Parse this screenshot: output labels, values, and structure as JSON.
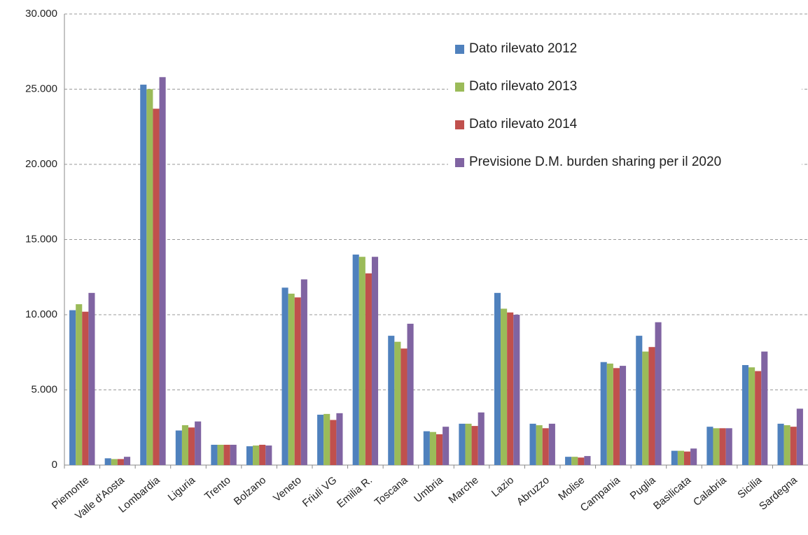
{
  "chart_data": {
    "type": "bar",
    "categories": [
      "Piemonte",
      "Valle d'Aosta",
      "Lombardia",
      "Liguria",
      "Trento",
      "Bolzano",
      "Veneto",
      "Friuli VG",
      "Emilia R.",
      "Toscana",
      "Umbria",
      "Marche",
      "Lazio",
      "Abruzzo",
      "Molise",
      "Campania",
      "Puglia",
      "Basilicata",
      "Calabria",
      "Sicilia",
      "Sardegna"
    ],
    "series": [
      {
        "name": "Dato rilevato 2012",
        "color": "#4f81bd",
        "values": [
          10300,
          450,
          25300,
          2300,
          1350,
          1250,
          11800,
          3350,
          14000,
          8600,
          2250,
          2750,
          11450,
          2750,
          550,
          6850,
          8600,
          950,
          2550,
          6650,
          2750
        ]
      },
      {
        "name": "Dato rilevato 2013",
        "color": "#9bbb59",
        "values": [
          10700,
          400,
          25000,
          2650,
          1350,
          1300,
          11400,
          3400,
          13850,
          8200,
          2200,
          2750,
          10400,
          2650,
          550,
          6750,
          7550,
          950,
          2450,
          6500,
          2650
        ]
      },
      {
        "name": "Dato rilevato 2014",
        "color": "#c0504d",
        "values": [
          10200,
          400,
          23700,
          2500,
          1350,
          1350,
          11150,
          3000,
          12750,
          7750,
          2050,
          2600,
          10150,
          2450,
          500,
          6450,
          7850,
          900,
          2450,
          6250,
          2550
        ]
      },
      {
        "name": "Previsione D.M. burden sharing per il 2020",
        "color": "#8064a2",
        "values": [
          11450,
          550,
          25800,
          2900,
          1350,
          1300,
          12350,
          3450,
          13850,
          9400,
          2550,
          3500,
          10000,
          2750,
          600,
          6600,
          9500,
          1100,
          2450,
          7550,
          3750
        ]
      }
    ],
    "ylim": [
      0,
      30000
    ],
    "yticks": [
      0,
      {
        "value": 5000,
        "label": "5.000"
      },
      {
        "value": 10000,
        "label": "10.000"
      },
      {
        "value": 15000,
        "label": "15.000"
      },
      {
        "value": 20000,
        "label": "20.000"
      },
      {
        "value": 25000,
        "label": "25.000"
      },
      {
        "value": 30000,
        "label": "30.000"
      }
    ],
    "grid": true
  }
}
